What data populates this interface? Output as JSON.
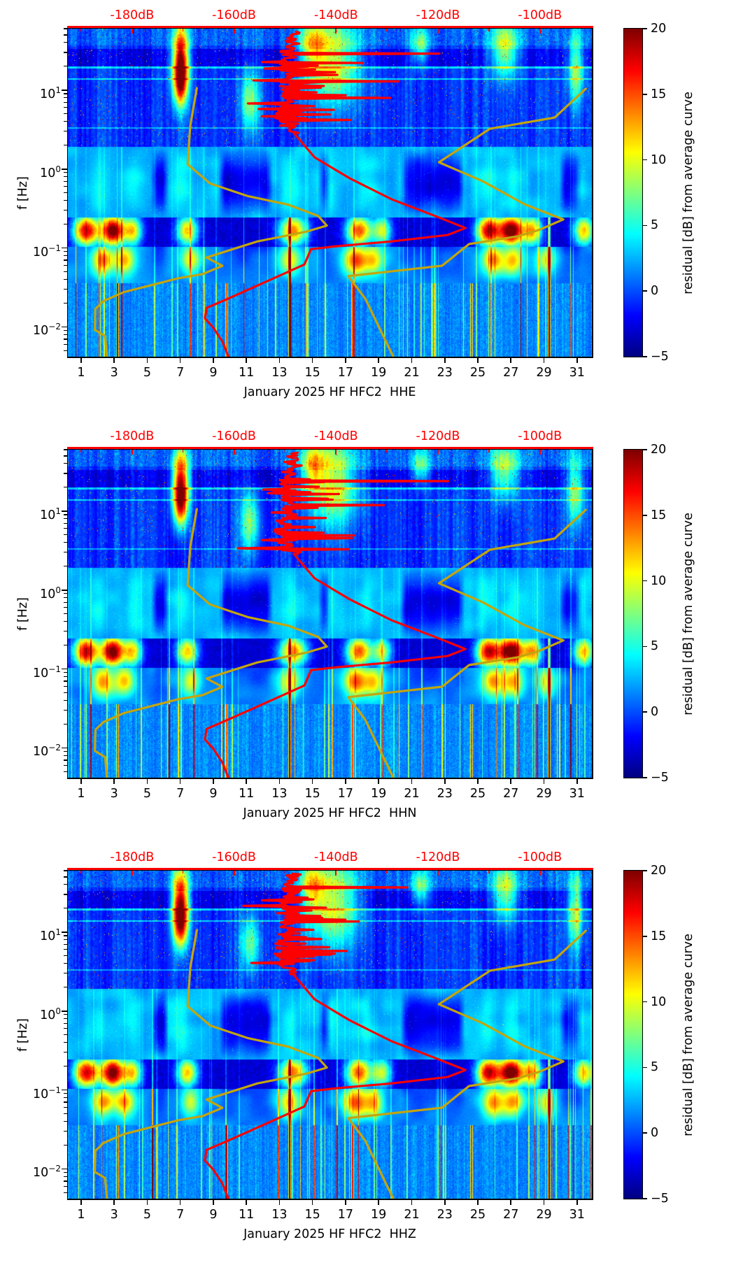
{
  "figure": {
    "background": "#ffffff"
  },
  "colors": {
    "average_curve": "#ff0000",
    "noise_model_curve": "#c3a50e",
    "top_axis": "#ff0000",
    "text": "#000000",
    "spine": "#000000"
  },
  "axes": {
    "ylabel": "f [Hz]",
    "y_tick_base": "10",
    "y_tick_exponents": [
      "1",
      "0",
      "−1",
      "−2"
    ],
    "x_tick_days": [
      1,
      3,
      5,
      7,
      9,
      11,
      13,
      15,
      17,
      19,
      21,
      23,
      25,
      27,
      29,
      31
    ],
    "top_axis_tick_labels": [
      "-180dB",
      "-160dB",
      "-140dB",
      "-120dB",
      "-100dB"
    ],
    "top_axis_tick_db": [
      -180,
      -160,
      -140,
      -120,
      -100
    ],
    "top_axis_minor_db": [
      -190,
      -170,
      -150,
      -130,
      -110
    ]
  },
  "colorbar": {
    "label": "residual [dB] from average curve",
    "tick_labels": [
      "20",
      "15",
      "10",
      "5",
      "0",
      "−5"
    ],
    "tick_values": [
      20,
      15,
      10,
      5,
      0,
      -5
    ],
    "vmin": -5,
    "vmax": 20,
    "colormap": "jet"
  },
  "panels": [
    {
      "channel": "HHE",
      "xlabel": "January 2025 HF HFC2  HHE",
      "seed": 11,
      "spike_f": 30,
      "spike_db": 28
    },
    {
      "channel": "HHN",
      "xlabel": "January 2025 HF HFC2  HHN",
      "seed": 23,
      "spike_f": 25,
      "spike_db": 33
    },
    {
      "channel": "HHZ",
      "xlabel": "January 2025 HF HFC2  HHZ",
      "seed": 37,
      "spike_f": 38,
      "spike_db": 22
    }
  ],
  "chart_data": {
    "type": "heatmap",
    "description": "Three stacked spectrogram panels (channels HHE, HHN, HHZ) of PSD residual [dB] from the monthly average curve, January 2025, station HF.HFC2. Log frequency axis 0.0042-60 Hz, day-of-month x axis. Overlaid: red station average PSD curve and dark-yellow low/high noise model curves, all read against the red top dB axis.",
    "x_axis": {
      "range_days": [
        0.2,
        31.9
      ],
      "ticks": [
        1,
        3,
        5,
        7,
        9,
        11,
        13,
        15,
        17,
        19,
        21,
        23,
        25,
        27,
        29,
        31
      ]
    },
    "top_x_axis": {
      "range_db": [
        -192.6,
        -89.8
      ],
      "ticks_db": [
        -180,
        -160,
        -140,
        -120,
        -100
      ]
    },
    "y_axis": {
      "scale": "log",
      "range_hz": [
        0.0042,
        60
      ],
      "tick_exponents": [
        1,
        0,
        -1,
        -2
      ]
    },
    "z_axis": {
      "label": "residual [dB] from average curve",
      "range": [
        -5,
        20
      ],
      "colormap": "jet"
    },
    "curves": {
      "average_psd_db_f": [
        [
          -148.3,
          55
        ],
        [
          -149.9,
          22
        ],
        [
          -149.0,
          9.8
        ],
        [
          -151.0,
          5.3
        ],
        [
          -148.3,
          2.87
        ],
        [
          -144.2,
          1.41
        ],
        [
          -137.3,
          0.762
        ],
        [
          -129.1,
          0.414
        ],
        [
          -120.1,
          0.248
        ],
        [
          -114.6,
          0.179
        ],
        [
          -118.1,
          0.146
        ],
        [
          -129.1,
          0.121
        ],
        [
          -140.0,
          0.105
        ],
        [
          -144.9,
          0.0966
        ],
        [
          -146.2,
          0.0618
        ],
        [
          -151.7,
          0.0428
        ],
        [
          -160.6,
          0.0237
        ],
        [
          -165.4,
          0.0174
        ],
        [
          -165.7,
          0.0128
        ],
        [
          -164.1,
          0.00983
        ],
        [
          -162.3,
          0.00655
        ],
        [
          -161.1,
          0.0042
        ]
      ],
      "noise_model_low_db_f": [
        [
          -167.3,
          10.6
        ],
        [
          -168.6,
          3.5
        ],
        [
          -169.1,
          1.15
        ],
        [
          -164.7,
          0.656
        ],
        [
          -157.2,
          0.452
        ],
        [
          -149.4,
          0.354
        ],
        [
          -143.5,
          0.255
        ],
        [
          -141.8,
          0.192
        ],
        [
          -145.8,
          0.161
        ],
        [
          -155.4,
          0.121
        ],
        [
          -165.4,
          0.0758
        ],
        [
          -162.3,
          0.0594
        ],
        [
          -166.2,
          0.0466
        ],
        [
          -170.9,
          0.0414
        ],
        [
          -181.6,
          0.0276
        ],
        [
          -185.6,
          0.0213
        ],
        [
          -187.2,
          0.0169
        ],
        [
          -187.3,
          0.00916
        ],
        [
          -185.3,
          0.00767
        ],
        [
          -184.9,
          0.004
        ]
      ],
      "noise_model_high_db_f": [
        [
          -91.0,
          10.4
        ],
        [
          -97.1,
          4.49
        ],
        [
          -109.8,
          3.24
        ],
        [
          -119.8,
          1.22
        ],
        [
          -111.2,
          0.7
        ],
        [
          -103.0,
          0.358
        ],
        [
          -95.4,
          0.23
        ],
        [
          -100.2,
          0.169
        ],
        [
          -104.3,
          0.141
        ],
        [
          -113.9,
          0.112
        ],
        [
          -119.2,
          0.0596
        ],
        [
          -137.6,
          0.044
        ],
        [
          -134.3,
          0.023
        ],
        [
          -128.6,
          0.004
        ]
      ]
    },
    "texture": {
      "top_band_blobs": [
        {
          "day": 7.0,
          "t": 0.09,
          "sd": 0.35,
          "st": 0.07,
          "amp": 19
        },
        {
          "day": 7.0,
          "t": 0.17,
          "sd": 0.3,
          "st": 0.05,
          "amp": 12
        },
        {
          "day": 16.2,
          "t": 0.1,
          "sd": 1.1,
          "st": 0.09,
          "amp": 11
        },
        {
          "day": 15.0,
          "t": 0.05,
          "sd": 0.5,
          "st": 0.05,
          "amp": 9
        },
        {
          "day": 26.6,
          "t": 0.06,
          "sd": 0.6,
          "st": 0.06,
          "amp": 10
        },
        {
          "day": 30.9,
          "t": 0.12,
          "sd": 0.35,
          "st": 0.08,
          "amp": 9
        },
        {
          "day": 11.2,
          "t": 0.22,
          "sd": 0.4,
          "st": 0.06,
          "amp": 8
        },
        {
          "day": 21.5,
          "t": 0.05,
          "sd": 0.4,
          "st": 0.04,
          "amp": 8
        }
      ],
      "mid_wedges": [
        {
          "d0": 9.3,
          "d1": 12.6
        },
        {
          "d0": 20.3,
          "d1": 24.2
        },
        {
          "d0": 5.2,
          "d1": 6.3
        },
        {
          "d0": 15.3,
          "d1": 16.1
        },
        {
          "d0": 29.9,
          "d1": 31.3
        }
      ],
      "microseism_blobs": [
        {
          "day": 1.3,
          "amp": 21,
          "sd": 0.55
        },
        {
          "day": 2.9,
          "amp": 24,
          "sd": 0.5
        },
        {
          "day": 4.1,
          "amp": 14,
          "sd": 0.4
        },
        {
          "day": 7.4,
          "amp": 15,
          "sd": 0.45
        },
        {
          "day": 13.8,
          "amp": 17,
          "sd": 0.6
        },
        {
          "day": 17.8,
          "amp": 18,
          "sd": 0.55
        },
        {
          "day": 19.2,
          "amp": 12,
          "sd": 0.4
        },
        {
          "day": 25.6,
          "amp": 21,
          "sd": 0.5
        },
        {
          "day": 27.0,
          "amp": 25,
          "sd": 0.55
        },
        {
          "day": 28.3,
          "amp": 15,
          "sd": 0.4
        },
        {
          "day": 31.4,
          "amp": 15,
          "sd": 0.45
        }
      ],
      "lower_band_blobs": [
        {
          "day": 2.3,
          "amp": 12,
          "sd": 0.45
        },
        {
          "day": 3.6,
          "amp": 11,
          "sd": 0.45
        },
        {
          "day": 7.6,
          "amp": 9,
          "sd": 0.4
        },
        {
          "day": 13.6,
          "amp": 10,
          "sd": 0.45
        },
        {
          "day": 17.6,
          "amp": 14,
          "sd": 0.5
        },
        {
          "day": 18.7,
          "amp": 10,
          "sd": 0.4
        },
        {
          "day": 25.9,
          "amp": 12,
          "sd": 0.45
        },
        {
          "day": 27.1,
          "amp": 11,
          "sd": 0.45
        },
        {
          "day": 29.1,
          "amp": 8,
          "sd": 0.4
        }
      ],
      "plume_days": [
        2.0,
        4.2,
        7.0,
        13.7,
        16.0,
        18.2,
        25.5,
        27.0,
        31.0
      ],
      "red_column_days": [
        13.6,
        29.3
      ],
      "bright_column_days": [
        3.2,
        9.8,
        17.4,
        24.6
      ]
    }
  }
}
